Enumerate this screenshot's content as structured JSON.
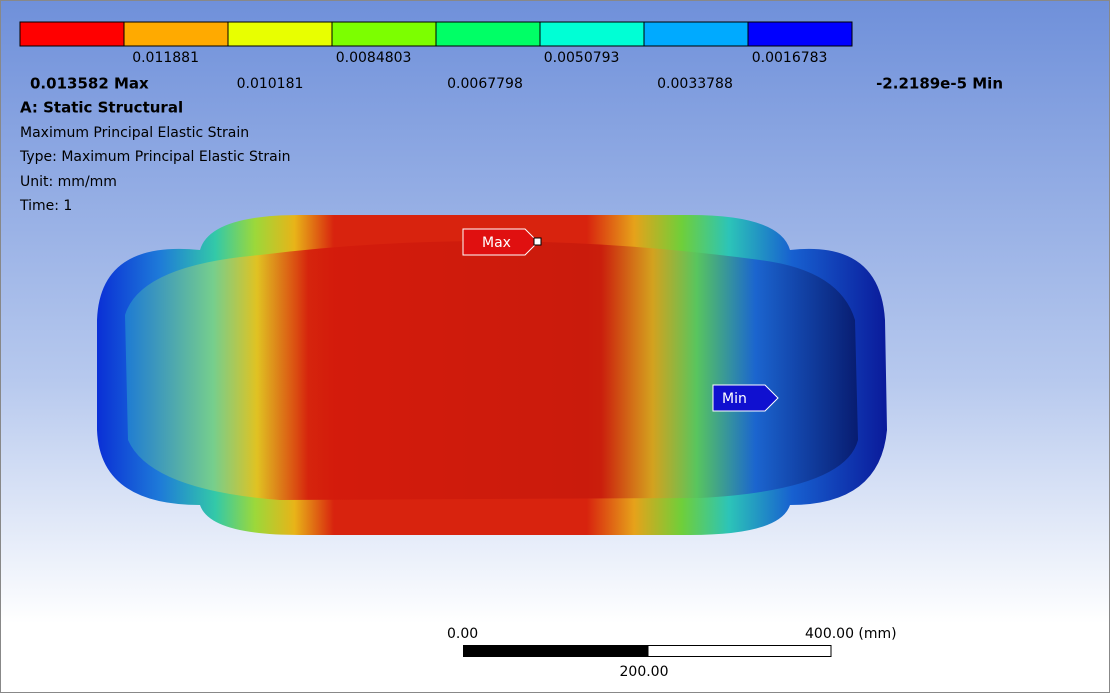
{
  "legend": {
    "colors": [
      "#ff0000",
      "#ffaa00",
      "#e8ff00",
      "#7cff00",
      "#00ff66",
      "#00ffd5",
      "#00aaff",
      "#0000ff"
    ],
    "upper_labels": [
      "0.011881",
      "0.0084803",
      "0.0050793",
      "0.0016783"
    ],
    "lower_labels": [
      "0.013582 Max",
      "0.010181",
      "0.0067798",
      "0.0033788",
      "-2.2189e-5 Min"
    ]
  },
  "info": {
    "analysis": "A: Static Structural",
    "result": "Maximum Principal Elastic Strain",
    "type": "Type: Maximum Principal Elastic Strain",
    "unit": "Unit: mm/mm",
    "time": "Time: 1"
  },
  "probes": {
    "max": "Max",
    "min": "Min"
  },
  "scale_bar": {
    "start": "0.00",
    "end": "400.00 (mm)",
    "middle": "200.00"
  }
}
